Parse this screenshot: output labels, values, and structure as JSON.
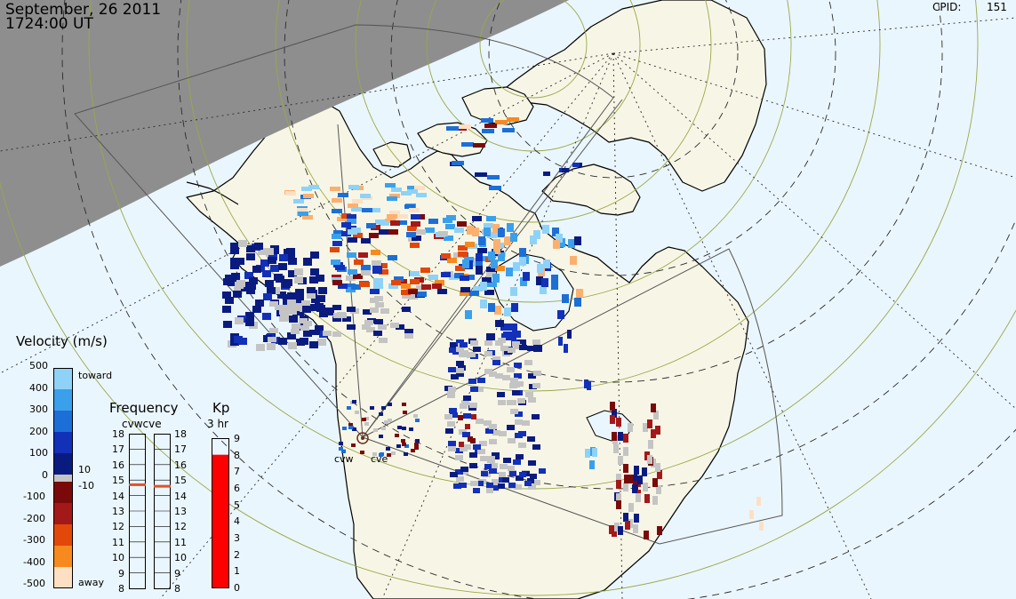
{
  "header": {
    "date": "September, 26 2011",
    "time": "1724:00 UT",
    "cpid_label": "CPID:",
    "cpid_value": "151"
  },
  "radars": {
    "west_code": "cvw",
    "east_code": "cve"
  },
  "velocity_legend": {
    "title": "Velocity (m/s)",
    "tick_values": [
      "500",
      "400",
      "300",
      "200",
      "100",
      "0",
      "-100",
      "-200",
      "-300",
      "-400",
      "-500"
    ],
    "toward_label": "toward",
    "away_label": "away",
    "ground_scatter_upper": "10",
    "ground_scatter_lower": "-10",
    "colors": [
      "#fde0c4",
      "#fbb070",
      "#f68a1e",
      "#e2480a",
      "#a31818",
      "#7a0a0a",
      "#0a1b80",
      "#1230b8",
      "#1c6fd6",
      "#3aa0ec",
      "#8fd2f7"
    ]
  },
  "frequency_legend": {
    "title": "Frequency",
    "subtitle": "cvwcve",
    "ticks": [
      "18",
      "17",
      "16",
      "15",
      "14",
      "13",
      "12",
      "11",
      "10",
      "9",
      "8"
    ],
    "cvw_mhz": 14.7,
    "cve_mhz": 14.6,
    "marker_color": "#e0532a"
  },
  "kp_legend": {
    "title": "Kp",
    "subtitle": "3 hr",
    "ticks": [
      "9",
      "8",
      "7",
      "6",
      "5",
      "4",
      "3",
      "2",
      "1",
      "0"
    ],
    "kp_value": 8,
    "fill_color": "#ff0000"
  },
  "map_colors": {
    "ocean": "#eaf6fd",
    "land": "#f7f6e6",
    "night": "#8e8e8e",
    "ground_scatter": "#c4c4c4"
  }
}
